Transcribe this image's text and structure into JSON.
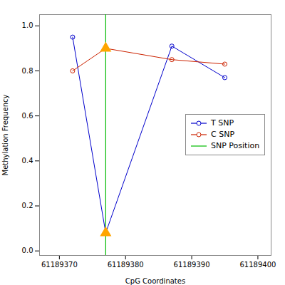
{
  "chart_data": {
    "type": "line",
    "xlabel": "CpG Coordinates",
    "ylabel": "Methylation Frequency",
    "x": [
      61189372,
      61189377,
      61189387,
      61189395
    ],
    "series": [
      {
        "name": "T SNP",
        "color": "#0000CC",
        "marker": "o",
        "values": [
          0.95,
          0.08,
          0.91,
          0.77
        ]
      },
      {
        "name": "C SNP",
        "color": "#CC2200",
        "marker": "o",
        "values": [
          0.8,
          0.9,
          0.85,
          0.83
        ]
      }
    ],
    "vline": {
      "name": "SNP Position",
      "x": 61189377,
      "color": "#00BB00"
    },
    "snp_markers": {
      "x": 61189377,
      "y": [
        0.9,
        0.08
      ],
      "color": "#FFA500",
      "marker": "^"
    },
    "xlim": [
      61189367,
      61189402
    ],
    "ylim": [
      -0.02,
      1.05
    ],
    "xticks": [
      61189370,
      61189380,
      61189390,
      61189400
    ],
    "yticks": [
      {
        "value": 0,
        "label": "0.0"
      },
      0.2,
      0.4,
      0.6,
      0.8,
      {
        "value": 1,
        "label": "1.0"
      }
    ],
    "grid": false,
    "legend": "center right"
  }
}
